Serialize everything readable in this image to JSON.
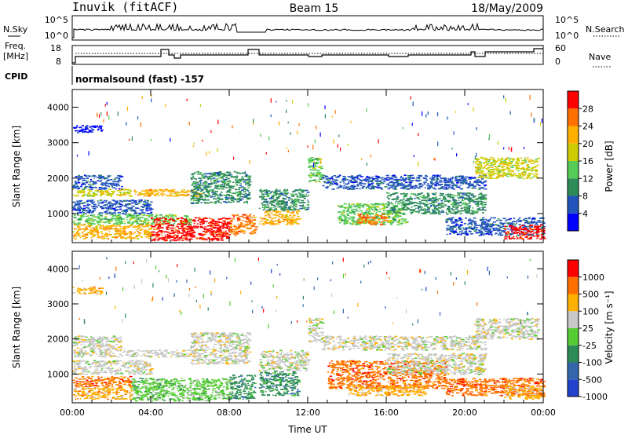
{
  "header": {
    "station": "Inuvik (fitACF)",
    "beam": "Beam 15",
    "date": "18/May/2009"
  },
  "noise_panel": {
    "left_label": "N.Sky",
    "right_label": "N.Search",
    "left_ticks": [
      "10^5",
      "10^0"
    ],
    "right_ticks": [
      "10^5",
      "10^0"
    ]
  },
  "freq_panel": {
    "left_label_1": "Freq.",
    "left_label_2": "[MHz]",
    "right_label": "Nave",
    "left_ticks": [
      "18",
      "8"
    ],
    "right_ticks": [
      "60",
      "0"
    ]
  },
  "cpid": {
    "label": "CPID",
    "text": "normalsound (fast) -157"
  },
  "chart_data": [
    {
      "type": "heatmap",
      "title": "",
      "xlabel": "",
      "ylabel": "Slant Range [km]",
      "x_ticks": [
        "00:00",
        "04:00",
        "08:00",
        "12:00",
        "16:00",
        "20:00",
        "00:00"
      ],
      "xlim_hours": [
        0,
        24
      ],
      "y_ticks": [
        1000,
        2000,
        3000,
        4000
      ],
      "ylim_km": [
        180,
        4500
      ],
      "colorbar": {
        "label": "Power [dB]",
        "ticks": [
          "4",
          "8",
          "12",
          "16",
          "20",
          "24",
          "28"
        ],
        "colors": [
          "#0000ff",
          "#2255bb",
          "#2e8b57",
          "#55cc55",
          "#cccc00",
          "#ffb000",
          "#ff7000",
          "#ff0000"
        ]
      },
      "bands": [
        {
          "t0": 0.0,
          "t1": 3.0,
          "r0": 1500,
          "r1": 1700,
          "level": 4
        },
        {
          "t0": 3.0,
          "t1": 6.5,
          "r0": 1500,
          "r1": 1700,
          "level": 5
        },
        {
          "t0": 0.0,
          "t1": 2.5,
          "r0": 1700,
          "r1": 2100,
          "level": 1
        },
        {
          "t0": 0.0,
          "t1": 4.0,
          "r0": 1000,
          "r1": 1400,
          "level": 1
        },
        {
          "t0": 0.0,
          "t1": 1.5,
          "r0": 3300,
          "r1": 3500,
          "level": 0
        },
        {
          "t0": 0.0,
          "t1": 6.0,
          "r0": 700,
          "r1": 1000,
          "level": 3
        },
        {
          "t0": 0.0,
          "t1": 4.0,
          "r0": 300,
          "r1": 700,
          "level": 5
        },
        {
          "t0": 4.0,
          "t1": 8.0,
          "r0": 250,
          "r1": 900,
          "level": 7
        },
        {
          "t0": 8.0,
          "t1": 9.3,
          "r0": 400,
          "r1": 1000,
          "level": 6
        },
        {
          "t0": 6.0,
          "t1": 9.0,
          "r0": 1300,
          "r1": 2200,
          "level": 2
        },
        {
          "t0": 9.5,
          "t1": 11.5,
          "r0": 700,
          "r1": 1100,
          "level": 5
        },
        {
          "t0": 9.5,
          "t1": 12.0,
          "r0": 1100,
          "r1": 1700,
          "level": 2
        },
        {
          "t0": 12.0,
          "t1": 12.7,
          "r0": 1900,
          "r1": 2600,
          "level": 3
        },
        {
          "t0": 12.7,
          "t1": 21.0,
          "r0": 1700,
          "r1": 2100,
          "level": 1
        },
        {
          "t0": 13.5,
          "t1": 17.0,
          "r0": 700,
          "r1": 1300,
          "level": 3
        },
        {
          "t0": 14.5,
          "t1": 16.0,
          "r0": 700,
          "r1": 1000,
          "level": 6
        },
        {
          "t0": 16.0,
          "t1": 21.0,
          "r0": 1000,
          "r1": 1600,
          "level": 2
        },
        {
          "t0": 20.5,
          "t1": 23.7,
          "r0": 2000,
          "r1": 2600,
          "level": 4
        },
        {
          "t0": 19.0,
          "t1": 24.0,
          "r0": 400,
          "r1": 900,
          "level": 1
        },
        {
          "t0": 22.0,
          "t1": 24.0,
          "r0": 300,
          "r1": 700,
          "level": 7
        }
      ]
    },
    {
      "type": "heatmap",
      "title": "",
      "xlabel": "Time UT",
      "ylabel": "Slant Range [km]",
      "x_ticks": [
        "00:00",
        "04:00",
        "08:00",
        "12:00",
        "16:00",
        "20:00",
        "00:00"
      ],
      "xlim_hours": [
        0,
        24
      ],
      "y_ticks": [
        1000,
        2000,
        3000,
        4000
      ],
      "ylim_km": [
        180,
        4500
      ],
      "colorbar": {
        "label": "Velocity [m s⁻¹]",
        "ticks": [
          "1000",
          "500",
          "100",
          "25",
          "-25",
          "-100",
          "-500",
          "-1000"
        ],
        "colors": [
          "#2244cc",
          "#3366aa",
          "#2e8b57",
          "#55cc33",
          "#c8c8c8",
          "#ffb000",
          "#ff7000",
          "#ff0000"
        ]
      },
      "bands": [
        {
          "t0": 0.0,
          "t1": 3.0,
          "r0": 1500,
          "r1": 1700,
          "level": 4
        },
        {
          "t0": 3.0,
          "t1": 6.5,
          "r0": 1500,
          "r1": 1700,
          "level": 4
        },
        {
          "t0": 0.0,
          "t1": 2.5,
          "r0": 1700,
          "r1": 2100,
          "level": 4
        },
        {
          "t0": 0.0,
          "t1": 4.0,
          "r0": 1000,
          "r1": 1400,
          "level": 4
        },
        {
          "t0": 0.0,
          "t1": 1.5,
          "r0": 3300,
          "r1": 3500,
          "level": 5
        },
        {
          "t0": 0.0,
          "t1": 3.0,
          "r0": 650,
          "r1": 950,
          "level": 6
        },
        {
          "t0": 0.0,
          "t1": 3.0,
          "r0": 300,
          "r1": 650,
          "level": 5
        },
        {
          "t0": 3.0,
          "t1": 8.0,
          "r0": 250,
          "r1": 900,
          "level": 3
        },
        {
          "t0": 8.0,
          "t1": 9.3,
          "r0": 300,
          "r1": 1000,
          "level": 2
        },
        {
          "t0": 6.0,
          "t1": 9.0,
          "r0": 1300,
          "r1": 2200,
          "level": 4
        },
        {
          "t0": 9.5,
          "t1": 11.5,
          "r0": 400,
          "r1": 1100,
          "level": 2
        },
        {
          "t0": 9.5,
          "t1": 12.0,
          "r0": 1100,
          "r1": 1700,
          "level": 4
        },
        {
          "t0": 12.0,
          "t1": 12.7,
          "r0": 1900,
          "r1": 2600,
          "level": 4
        },
        {
          "t0": 12.7,
          "t1": 21.0,
          "r0": 1700,
          "r1": 2100,
          "level": 4
        },
        {
          "t0": 13.0,
          "t1": 19.0,
          "r0": 600,
          "r1": 1400,
          "level": 6
        },
        {
          "t0": 14.0,
          "t1": 18.0,
          "r0": 400,
          "r1": 700,
          "level": 5
        },
        {
          "t0": 16.0,
          "t1": 21.0,
          "r0": 1000,
          "r1": 1600,
          "level": 4
        },
        {
          "t0": 20.5,
          "t1": 23.7,
          "r0": 2000,
          "r1": 2600,
          "level": 4
        },
        {
          "t0": 19.0,
          "t1": 24.0,
          "r0": 400,
          "r1": 900,
          "level": 6
        },
        {
          "t0": 22.0,
          "t1": 24.0,
          "r0": 300,
          "r1": 700,
          "level": 5
        }
      ]
    }
  ]
}
